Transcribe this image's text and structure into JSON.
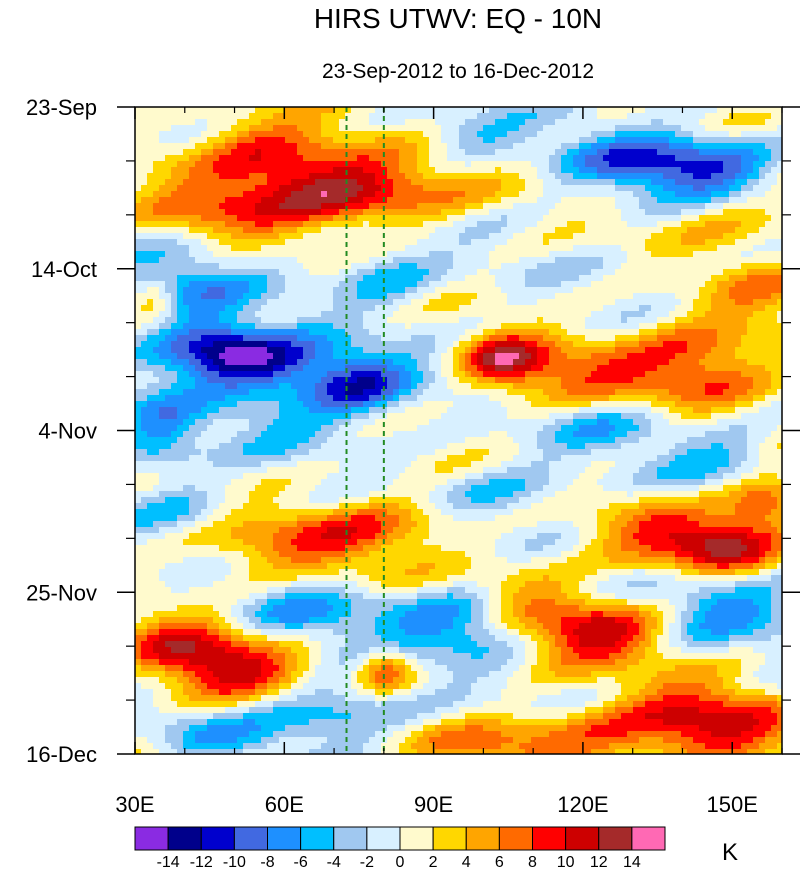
{
  "chart_data": {
    "type": "heatmap",
    "title": "HIRS UTWV: EQ - 10N",
    "subtitle": "23-Sep-2012 to 16-Dec-2012",
    "units": "K",
    "x_axis": {
      "range": [
        30,
        160
      ],
      "ticks": [
        30,
        60,
        90,
        120,
        150
      ],
      "tick_labels": [
        "30E",
        "60E",
        "90E",
        "120E",
        "150E"
      ]
    },
    "y_axis": {
      "range_days": [
        0,
        84
      ],
      "direction": "time increases downward",
      "ticks": [
        0,
        21,
        42,
        63,
        84
      ],
      "tick_labels": [
        "23-Sep",
        "14-Oct",
        "4-Nov",
        "25-Nov",
        "16-Dec"
      ]
    },
    "reference_lines": [
      {
        "lon": 72.5,
        "style": "dashed",
        "color": "#228b22"
      },
      {
        "lon": 80,
        "style": "dashed",
        "color": "#228b22"
      }
    ],
    "colorbar": {
      "levels": [
        -14,
        -12,
        -10,
        -8,
        -6,
        -4,
        -2,
        0,
        2,
        4,
        6,
        8,
        10,
        12,
        14
      ],
      "labels": [
        "-14",
        "-12",
        "-10",
        "-8",
        "-6",
        "-4",
        "-2",
        "0",
        "2",
        "4",
        "6",
        "8",
        "10",
        "12",
        "14"
      ],
      "colors": [
        "#8a2be2",
        "#00008b",
        "#0000cd",
        "#4169e1",
        "#1e90ff",
        "#00bfff",
        "#a0c8f0",
        "#d8f0ff",
        "#fffacd",
        "#ffd700",
        "#ffa500",
        "#ff6a00",
        "#ff0000",
        "#cd0000",
        "#a52a2a",
        "#ff69b4"
      ]
    },
    "features": [
      {
        "lon": 75,
        "day": 11,
        "value": 10,
        "sx": 14,
        "sy": 3
      },
      {
        "lon": 60,
        "day": 8,
        "value": 6,
        "sx": 14,
        "sy": 4
      },
      {
        "lon": 45,
        "day": 14,
        "value": 5,
        "sx": 12,
        "sy": 3
      },
      {
        "lon": 55,
        "day": 4,
        "value": 4,
        "sx": 10,
        "sy": 3
      },
      {
        "lon": 145,
        "day": 8,
        "value": -9,
        "sx": 10,
        "sy": 3
      },
      {
        "lon": 128,
        "day": 7,
        "value": -6,
        "sx": 10,
        "sy": 3
      },
      {
        "lon": 98,
        "day": 4,
        "value": -4,
        "sx": 8,
        "sy": 2
      },
      {
        "lon": 152,
        "day": 14,
        "value": 4,
        "sx": 10,
        "sy": 3
      },
      {
        "lon": 55,
        "day": 33,
        "value": -11,
        "sx": 10,
        "sy": 2.5
      },
      {
        "lon": 75,
        "day": 36,
        "value": -10,
        "sx": 8,
        "sy": 3
      },
      {
        "lon": 45,
        "day": 31,
        "value": -9,
        "sx": 8,
        "sy": 3
      },
      {
        "lon": 40,
        "day": 23,
        "value": -6,
        "sx": 10,
        "sy": 3
      },
      {
        "lon": 80,
        "day": 22,
        "value": -5,
        "sx": 8,
        "sy": 3
      },
      {
        "lon": 34,
        "day": 25,
        "value": 5,
        "sx": 3,
        "sy": 2
      },
      {
        "lon": 104,
        "day": 33,
        "value": 11,
        "sx": 6,
        "sy": 2.5
      },
      {
        "lon": 118,
        "day": 35,
        "value": 6,
        "sx": 10,
        "sy": 3
      },
      {
        "lon": 142,
        "day": 35,
        "value": 7,
        "sx": 12,
        "sy": 3
      },
      {
        "lon": 145,
        "day": 30,
        "value": 5,
        "sx": 10,
        "sy": 3
      },
      {
        "lon": 155,
        "day": 24,
        "value": 4,
        "sx": 8,
        "sy": 3
      },
      {
        "lon": 150,
        "day": 46,
        "value": -5,
        "sx": 8,
        "sy": 3
      },
      {
        "lon": 125,
        "day": 41,
        "value": -4,
        "sx": 10,
        "sy": 3
      },
      {
        "lon": 35,
        "day": 42,
        "value": -6,
        "sx": 6,
        "sy": 4
      },
      {
        "lon": 60,
        "day": 40,
        "value": -4,
        "sx": 10,
        "sy": 3
      },
      {
        "lon": 60,
        "day": 57,
        "value": 6,
        "sx": 16,
        "sy": 3
      },
      {
        "lon": 80,
        "day": 54,
        "value": 5,
        "sx": 12,
        "sy": 3
      },
      {
        "lon": 148,
        "day": 57,
        "value": 10,
        "sx": 8,
        "sy": 2.5
      },
      {
        "lon": 135,
        "day": 55,
        "value": 6,
        "sx": 10,
        "sy": 3
      },
      {
        "lon": 156,
        "day": 51,
        "value": 9,
        "sx": 6,
        "sy": 3
      },
      {
        "lon": 40,
        "day": 53,
        "value": -4,
        "sx": 8,
        "sy": 3
      },
      {
        "lon": 105,
        "day": 50,
        "value": -4,
        "sx": 10,
        "sy": 3
      },
      {
        "lon": 123,
        "day": 68,
        "value": 11,
        "sx": 10,
        "sy": 3
      },
      {
        "lon": 108,
        "day": 63,
        "value": 5,
        "sx": 8,
        "sy": 3
      },
      {
        "lon": 50,
        "day": 73,
        "value": 10,
        "sx": 10,
        "sy": 3
      },
      {
        "lon": 38,
        "day": 70,
        "value": 7,
        "sx": 8,
        "sy": 3
      },
      {
        "lon": 80,
        "day": 73,
        "value": 8,
        "sx": 4,
        "sy": 2
      },
      {
        "lon": 145,
        "day": 80,
        "value": 10,
        "sx": 12,
        "sy": 4
      },
      {
        "lon": 120,
        "day": 82,
        "value": 6,
        "sx": 12,
        "sy": 3
      },
      {
        "lon": 100,
        "day": 83,
        "value": 5,
        "sx": 10,
        "sy": 2
      },
      {
        "lon": 150,
        "day": 65,
        "value": -7,
        "sx": 10,
        "sy": 3
      },
      {
        "lon": 95,
        "day": 67,
        "value": -8,
        "sx": 10,
        "sy": 3
      },
      {
        "lon": 65,
        "day": 66,
        "value": -5,
        "sx": 10,
        "sy": 3
      },
      {
        "lon": 70,
        "day": 78,
        "value": -6,
        "sx": 10,
        "sy": 3
      },
      {
        "lon": 45,
        "day": 82,
        "value": -5,
        "sx": 10,
        "sy": 2
      }
    ]
  }
}
